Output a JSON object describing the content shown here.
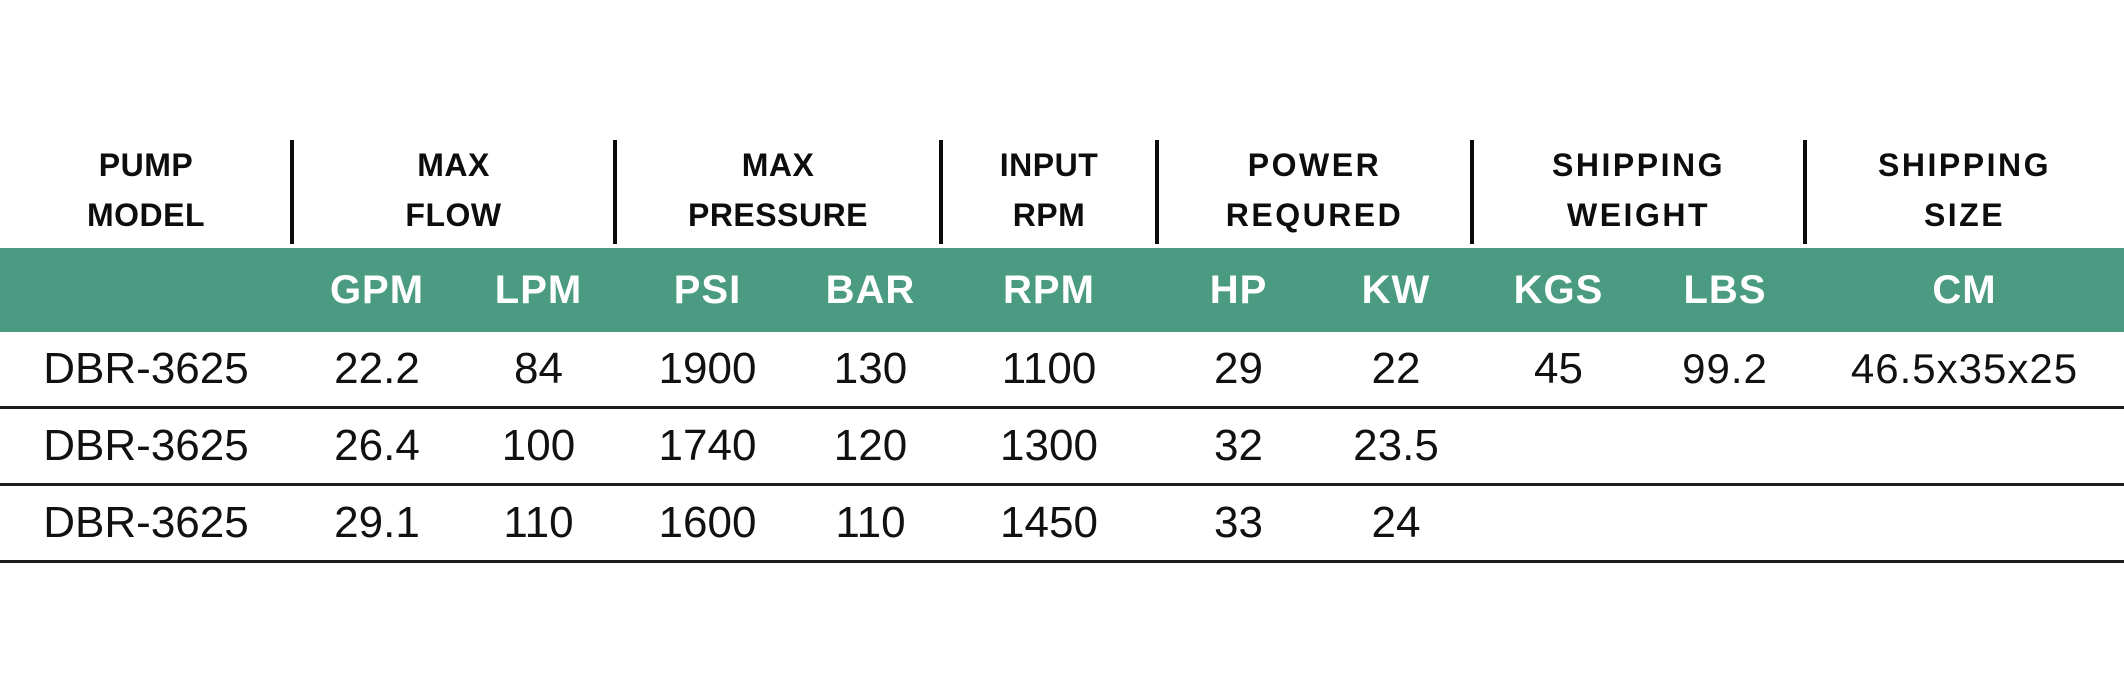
{
  "table": {
    "header_groups": [
      {
        "line1": "PUMP",
        "line2": "MODEL"
      },
      {
        "line1": "MAX",
        "line2": "FLOW"
      },
      {
        "line1": "MAX",
        "line2": "PRESSURE"
      },
      {
        "line1": "INPUT",
        "line2": "RPM"
      },
      {
        "line1": "POWER",
        "line2": "REQURED"
      },
      {
        "line1": "SHIPPING",
        "line2": "WEIGHT"
      },
      {
        "line1": "SHIPPING",
        "line2": "SIZE"
      }
    ],
    "units": [
      "GPM",
      "LPM",
      "PSI",
      "BAR",
      "RPM",
      "HP",
      "KW",
      "KGS",
      "LBS",
      "CM"
    ],
    "rows": [
      {
        "model": "DBR-3625",
        "gpm": "22.2",
        "lpm": "84",
        "psi": "1900",
        "bar": "130",
        "rpm": "1100",
        "hp": "29",
        "kw": "22",
        "kgs": "45",
        "lbs": "99.2",
        "cm": "46.5x35x25"
      },
      {
        "model": "DBR-3625",
        "gpm": "26.4",
        "lpm": "100",
        "psi": "1740",
        "bar": "120",
        "rpm": "1300",
        "hp": "32",
        "kw": "23.5",
        "kgs": "",
        "lbs": "",
        "cm": ""
      },
      {
        "model": "DBR-3625",
        "gpm": "29.1",
        "lpm": "110",
        "psi": "1600",
        "bar": "110",
        "rpm": "1450",
        "hp": "33",
        "kw": "24",
        "kgs": "",
        "lbs": "",
        "cm": ""
      }
    ],
    "colors": {
      "accent_green": "#4a9b82",
      "text": "#111111",
      "divider": "#1c1c1c"
    }
  }
}
